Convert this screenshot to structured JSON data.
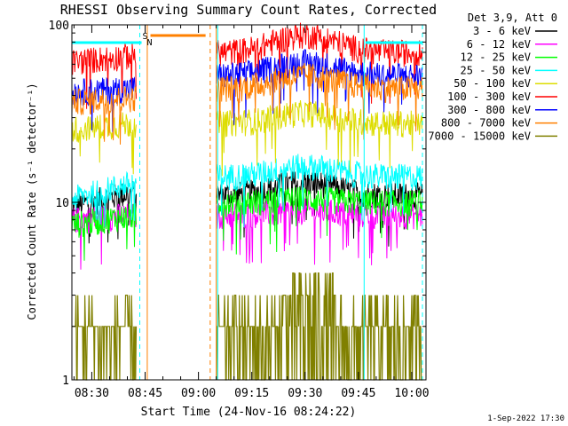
{
  "chart_data": {
    "type": "line",
    "title": "RHESSI Observing Summary Count Rates, Corrected",
    "xlabel": "Start Time (24-Nov-16 08:24:22)",
    "ylabel": "Corrected Count Rate (s⁻¹ detector⁻¹)",
    "yscale": "log",
    "ylim": [
      1,
      100
    ],
    "xlim_minutes": [
      504.4,
      604
    ],
    "x_ticks": [
      {
        "label": "08:30",
        "minute": 510
      },
      {
        "label": "08:45",
        "minute": 525
      },
      {
        "label": "09:00",
        "minute": 540
      },
      {
        "label": "09:15",
        "minute": 555
      },
      {
        "label": "09:30",
        "minute": 570
      },
      {
        "label": "09:45",
        "minute": 585
      },
      {
        "label": "10:00",
        "minute": 600
      }
    ],
    "y_ticks": [
      {
        "label": "1",
        "value": 1
      },
      {
        "label": "10",
        "value": 10
      },
      {
        "label": "100",
        "value": 100
      }
    ],
    "legend_header": "Det 3,9, Att 0",
    "legend_position": "top-right",
    "series": [
      {
        "name": "3 - 6 keV",
        "color": "#000000",
        "segA": {
          "x": [
            504.4,
            522.5
          ],
          "y": [
            9.5,
            11.5
          ]
        },
        "segB": {
          "x": [
            545.0,
            603.0
          ],
          "y": [
            11.0,
            13.0
          ]
        }
      },
      {
        "name": "6 - 12 keV",
        "color": "#ff00ff",
        "segA": {
          "x": [
            504.4,
            522.5
          ],
          "y": [
            8.0,
            8.5
          ]
        },
        "segB": {
          "x": [
            545.0,
            603.0
          ],
          "y": [
            8.5,
            9.0
          ]
        }
      },
      {
        "name": "12 - 25 keV",
        "color": "#00ff00",
        "segA": {
          "x": [
            504.4,
            522.5
          ],
          "y": [
            7.5,
            8.5
          ]
        },
        "segB": {
          "x": [
            545.0,
            603.0
          ],
          "y": [
            10.0,
            10.5
          ]
        }
      },
      {
        "name": "25 - 50 keV",
        "color": "#00ffff",
        "segA": {
          "x": [
            504.4,
            522.5
          ],
          "y": [
            10.5,
            13.0
          ]
        },
        "segB": {
          "x": [
            545.0,
            603.0
          ],
          "y": [
            14.0,
            16.0
          ]
        }
      },
      {
        "name": "50 - 100 keV",
        "color": "#dddd00",
        "segA": {
          "x": [
            504.4,
            522.5
          ],
          "y": [
            26.0,
            28.0
          ]
        },
        "segB": {
          "x": [
            545.0,
            603.0
          ],
          "y": [
            28.0,
            32.0
          ]
        }
      },
      {
        "name": "100 - 300 keV",
        "color": "#ff0000",
        "segA": {
          "x": [
            504.4,
            522.5
          ],
          "y": [
            62.0,
            68.0
          ]
        },
        "segB": {
          "x": [
            545.0,
            603.0
          ],
          "y": [
            70.0,
            88.0
          ]
        }
      },
      {
        "name": "300 - 800 keV",
        "color": "#0000ff",
        "segA": {
          "x": [
            504.4,
            522.5
          ],
          "y": [
            42.0,
            44.0
          ]
        },
        "segB": {
          "x": [
            545.0,
            603.0
          ],
          "y": [
            52.0,
            62.0
          ]
        }
      },
      {
        "name": "800 - 7000 keV",
        "color": "#ff8000",
        "segA": {
          "x": [
            504.4,
            522.5
          ],
          "y": [
            37.0,
            39.0
          ]
        },
        "segB": {
          "x": [
            545.0,
            603.0
          ],
          "y": [
            44.0,
            52.0
          ]
        }
      },
      {
        "name": "7000 - 15000 keV",
        "color": "#808000",
        "segA": {
          "x": [
            504.4,
            522.5
          ],
          "y": [
            1.5,
            1.5
          ]
        },
        "segB": {
          "x": [
            545.0,
            603.0
          ],
          "y": [
            1.8,
            2.2
          ]
        }
      }
    ],
    "flags": {
      "saa_label": "S",
      "night_label": "N",
      "saa_minutes": [
        524.0,
        544.0
      ],
      "night_bars": [
        [
          504.4,
          524.0
        ],
        [
          587.0,
          603.0
        ]
      ]
    },
    "vertical_markers": [
      {
        "minute": 504.4,
        "color": "#00ffff",
        "style": "solid"
      },
      {
        "minute": 523.5,
        "color": "#00ffff",
        "style": "dashed"
      },
      {
        "minute": 525.6,
        "color": "#ff8000",
        "style": "solid"
      },
      {
        "minute": 543.3,
        "color": "#ff8000",
        "style": "dashed"
      },
      {
        "minute": 545.0,
        "color": "#ff8000",
        "style": "solid"
      },
      {
        "minute": 545.4,
        "color": "#00ffff",
        "style": "solid"
      },
      {
        "minute": 586.6,
        "color": "#00ffff",
        "style": "solid"
      },
      {
        "minute": 603.0,
        "color": "#00ffff",
        "style": "dashed"
      }
    ],
    "grid": false
  },
  "footer_date": "1-Sep-2022 17:30"
}
